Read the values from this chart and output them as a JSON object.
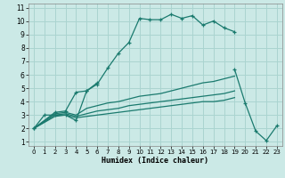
{
  "xlabel": "Humidex (Indice chaleur)",
  "background_color": "#cbe9e6",
  "grid_color": "#aad4d0",
  "line_color": "#1a7a6e",
  "xlim": [
    -0.5,
    23.5
  ],
  "ylim": [
    0.7,
    11.3
  ],
  "xticks": [
    0,
    1,
    2,
    3,
    4,
    5,
    6,
    7,
    8,
    9,
    10,
    11,
    12,
    13,
    14,
    15,
    16,
    17,
    18,
    19,
    20,
    21,
    22,
    23
  ],
  "yticks": [
    1,
    2,
    3,
    4,
    5,
    6,
    7,
    8,
    9,
    10,
    11
  ],
  "series": [
    {
      "x": [
        0,
        1,
        2,
        3,
        4,
        5,
        6,
        7,
        8,
        9,
        10,
        11,
        12,
        13,
        14,
        15,
        16,
        17,
        18,
        19
      ],
      "y": [
        2,
        3,
        3,
        3,
        2.6,
        4.8,
        5.3,
        6.5,
        7.6,
        8.4,
        10.2,
        10.1,
        10.1,
        10.5,
        10.2,
        10.4,
        9.7,
        10.0,
        9.5,
        9.2
      ],
      "marker": true
    },
    {
      "x": [
        0,
        2,
        3,
        4,
        5,
        6,
        19,
        20,
        21,
        22,
        23
      ],
      "y": [
        2,
        3.2,
        3.3,
        4.7,
        4.8,
        5.4,
        6.4,
        3.9,
        1.8,
        1.1,
        2.2
      ],
      "marker": true,
      "segments": [
        [
          0,
          2,
          3,
          4,
          5,
          6
        ],
        [
          19,
          20,
          21,
          22,
          23
        ]
      ]
    },
    {
      "x": [
        0,
        2,
        3,
        4,
        5,
        6,
        7,
        8,
        9,
        10,
        11,
        12,
        13,
        14,
        15,
        16,
        17,
        18,
        19
      ],
      "y": [
        2,
        3.1,
        3.2,
        3.0,
        3.5,
        3.7,
        3.9,
        4.0,
        4.2,
        4.4,
        4.5,
        4.6,
        4.8,
        5.0,
        5.2,
        5.4,
        5.5,
        5.7,
        5.9
      ],
      "marker": false
    },
    {
      "x": [
        0,
        2,
        3,
        4,
        5,
        6,
        7,
        8,
        9,
        10,
        11,
        12,
        13,
        14,
        15,
        16,
        17,
        18,
        19
      ],
      "y": [
        2,
        3.0,
        3.1,
        2.9,
        3.1,
        3.3,
        3.4,
        3.5,
        3.7,
        3.8,
        3.9,
        4.0,
        4.1,
        4.2,
        4.3,
        4.4,
        4.5,
        4.6,
        4.8
      ],
      "marker": false
    },
    {
      "x": [
        0,
        2,
        3,
        4,
        5,
        6,
        7,
        8,
        9,
        10,
        11,
        12,
        13,
        14,
        15,
        16,
        17,
        18,
        19
      ],
      "y": [
        2,
        2.9,
        3.0,
        2.8,
        2.9,
        3.0,
        3.1,
        3.2,
        3.3,
        3.4,
        3.5,
        3.6,
        3.7,
        3.8,
        3.9,
        4.0,
        4.0,
        4.1,
        4.3
      ],
      "marker": false
    }
  ]
}
